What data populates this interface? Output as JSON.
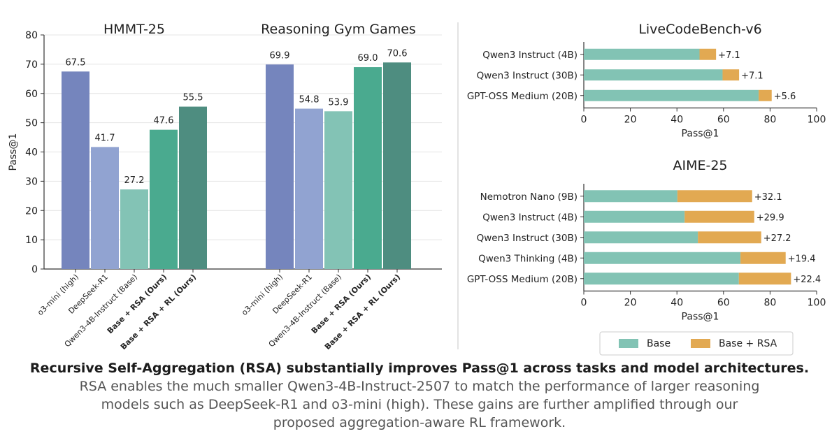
{
  "colors": {
    "o3": "#7585bd",
    "deepseek": "#91a3d1",
    "qbase": "#83c3b5",
    "rsa": "#4aaa8f",
    "rsarl": "#4e8d80",
    "hbase": "#82c3b4",
    "hrsa": "#e2a952",
    "grid": "#e4e4e4",
    "axis": "#333333",
    "divider": "#d0d0d0"
  },
  "chart_data": [
    {
      "type": "bar",
      "ylabel": "Pass@1",
      "ylim": [
        0,
        80
      ],
      "yticks": [
        "0",
        "10",
        "20",
        "30",
        "40",
        "50",
        "60",
        "70",
        "80"
      ],
      "categories": [
        "o3-mini (high)",
        "DeepSeek-R1",
        "Qwen3-4B-Instruct (Base)",
        "Base + RSA (Ours)",
        "Base + RSA + RL (Ours)"
      ],
      "bold_categories": [
        false,
        false,
        false,
        true,
        true
      ],
      "panels": [
        {
          "title": "HMMT-25",
          "values": [
            67.5,
            41.7,
            27.2,
            47.6,
            55.5
          ],
          "labels": [
            "67.5",
            "41.7",
            "27.2",
            "47.6",
            "55.5"
          ]
        },
        {
          "title": "Reasoning Gym Games",
          "values": [
            69.9,
            54.8,
            53.9,
            69.0,
            70.6
          ],
          "labels": [
            "69.9",
            "54.8",
            "53.9",
            "69.0",
            "70.6"
          ]
        }
      ]
    },
    {
      "type": "bar",
      "orientation": "horizontal",
      "stacked": true,
      "title": "LiveCodeBench-v6",
      "xlabel": "Pass@1",
      "xlim": [
        0,
        100
      ],
      "xticks": [
        "0",
        "20",
        "40",
        "60",
        "80",
        "100"
      ],
      "categories": [
        "Qwen3 Instruct (4B)",
        "Qwen3 Instruct (30B)",
        "GPT-OSS Medium (20B)"
      ],
      "series": [
        {
          "name": "Base",
          "values": [
            49.7,
            59.6,
            75.1
          ]
        },
        {
          "name": "Base + RSA",
          "values": [
            7.1,
            7.1,
            5.6
          ]
        }
      ],
      "labels": [
        "+7.1",
        "+7.1",
        "+5.6"
      ]
    },
    {
      "type": "bar",
      "orientation": "horizontal",
      "stacked": true,
      "title": "AIME-25",
      "xlabel": "Pass@1",
      "xlim": [
        0,
        100
      ],
      "xticks": [
        "0",
        "20",
        "40",
        "60",
        "80",
        "100"
      ],
      "categories": [
        "Nemotron Nano (9B)",
        "Qwen3 Instruct (4B)",
        "Qwen3 Instruct (30B)",
        "Qwen3 Thinking (4B)",
        "GPT-OSS Medium (20B)"
      ],
      "series": [
        {
          "name": "Base",
          "values": [
            40.2,
            43.3,
            49.0,
            67.3,
            66.6
          ]
        },
        {
          "name": "Base + RSA",
          "values": [
            32.1,
            29.9,
            27.2,
            19.4,
            22.4
          ]
        }
      ],
      "labels": [
        "+32.1",
        "+29.9",
        "+27.2",
        "+19.4",
        "+22.4"
      ]
    }
  ],
  "legend": {
    "items": [
      "Base",
      "Base + RSA"
    ]
  },
  "caption": {
    "title": "Recursive Self-Aggregation (RSA) substantially improves Pass@1 across tasks and model architectures.",
    "body": "RSA enables the much smaller Qwen3-4B-Instruct-2507 to match the performance of larger reasoning models such as DeepSeek-R1 and o3-mini (high). These gains are further amplified through our proposed aggregation-aware RL framework."
  }
}
